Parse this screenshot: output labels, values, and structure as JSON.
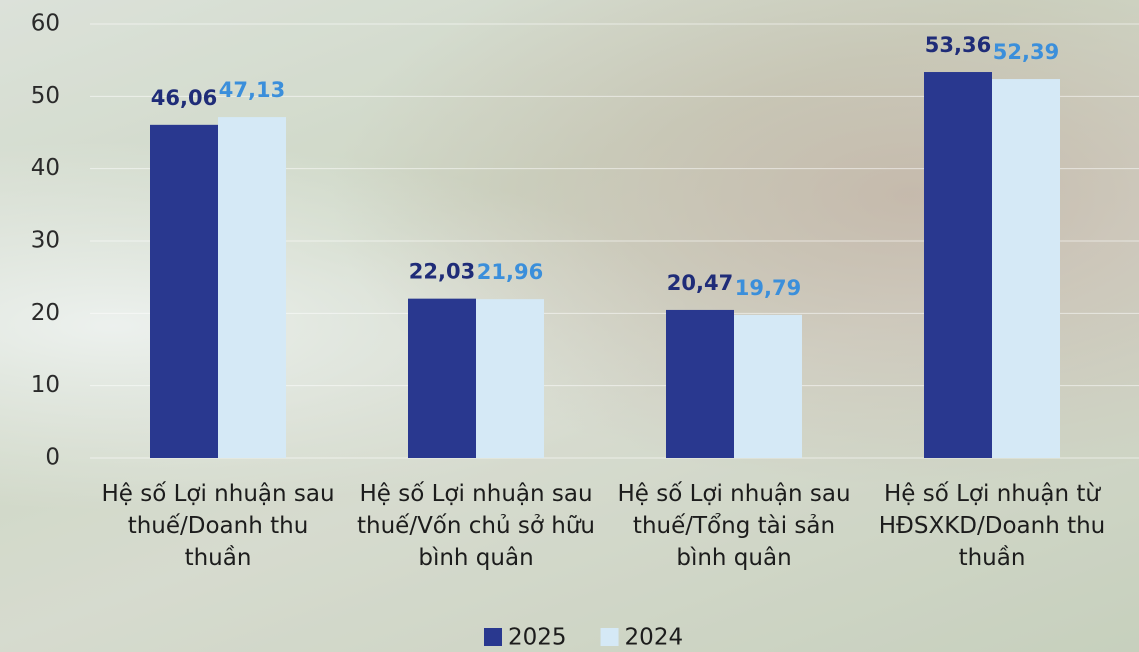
{
  "chart_data": {
    "type": "bar",
    "categories": [
      "Hệ số Lợi nhuận sau thuế/Doanh thu thuần",
      "Hệ số Lợi nhuận sau thuế/Vốn chủ sở hữu bình quân",
      "Hệ số Lợi nhuận sau thuế/Tổng tài sản bình quân",
      "Hệ số Lợi nhuận từ HĐSXKD/Doanh thu thuần"
    ],
    "series": [
      {
        "name": "2025",
        "color": "#29388f",
        "label_color": "#1f2c78",
        "values": [
          46.06,
          22.03,
          20.47,
          53.36
        ],
        "value_labels": [
          "46,06",
          "22,03",
          "20,47",
          "53,36"
        ]
      },
      {
        "name": "2024",
        "color": "#d5e9f6",
        "label_color": "#3b8fdb",
        "values": [
          47.13,
          21.96,
          19.79,
          52.39
        ],
        "value_labels": [
          "47,13",
          "21,96",
          "19,79",
          "52,39"
        ]
      }
    ],
    "ylim": [
      0,
      60
    ],
    "yticks": [
      0,
      10,
      20,
      30,
      40,
      50,
      60
    ],
    "grid": true,
    "legend": "bottom"
  }
}
